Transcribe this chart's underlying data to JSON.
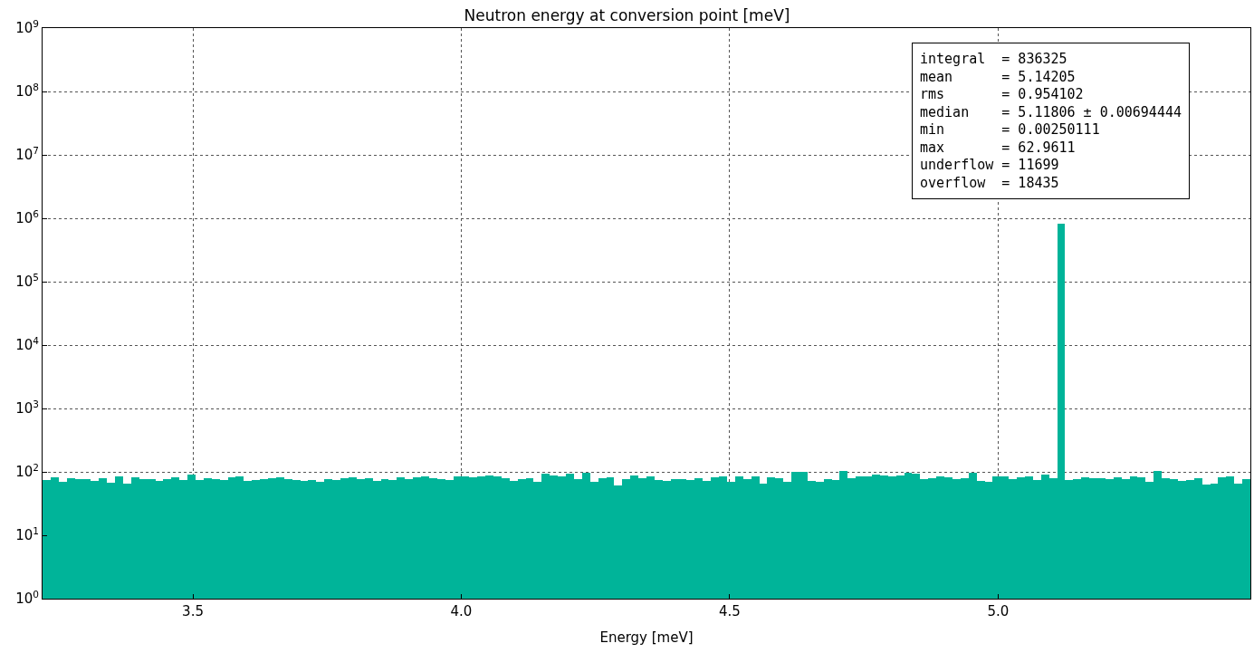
{
  "chart_data": {
    "type": "histogram",
    "title": "Neutron energy at conversion point [meV]",
    "xlabel": "Energy [meV]",
    "color": "#00b499",
    "log": "y",
    "grid": true,
    "xlim": [
      3.22,
      5.47
    ],
    "xticks": [
      3.5,
      {
        "value": 4.0,
        "label": "4.0"
      },
      4.5,
      {
        "value": 5.0,
        "label": "5.0"
      }
    ],
    "ylim": [
      1,
      1000000000
    ],
    "yticks": [
      {
        "value": 1,
        "label": "10$^{0}$"
      },
      {
        "value": 10,
        "label": "10$^{1}$"
      },
      {
        "value": 100,
        "label": "10$^{2}$"
      },
      {
        "value": 1000,
        "label": "10$^{3}$"
      },
      {
        "value": 10000,
        "label": "10$^{4}$"
      },
      {
        "value": 100000,
        "label": "10$^{5}$"
      },
      {
        "value": 1000000,
        "label": "10$^{6}$"
      },
      {
        "value": 10000000,
        "label": "10$^{7}$"
      },
      {
        "value": 100000000,
        "label": "10$^{8}$"
      },
      {
        "value": 1000000000,
        "label": "10$^{9}$"
      }
    ],
    "annotations": [
      "integral  = 836325\nmean      = 5.14205\nrms       = 0.954102\nmedian    = 5.11806 ± 0.00694444\nmin       = 0.00250111\nmax       = 62.9611\nunderflow = 11699\noverflow  = 18435"
    ],
    "bins": [
      3.22,
      3.235,
      3.25,
      3.265,
      3.28,
      3.295,
      3.31,
      3.325,
      3.34,
      3.355,
      3.37,
      3.385,
      3.4,
      3.415,
      3.43,
      3.445,
      3.46,
      3.475,
      3.49,
      3.505,
      3.52,
      3.535,
      3.55,
      3.565,
      3.58,
      3.595,
      3.61,
      3.625,
      3.64,
      3.655,
      3.67,
      3.685,
      3.7,
      3.715,
      3.73,
      3.745,
      3.76,
      3.775,
      3.79,
      3.805,
      3.82,
      3.835,
      3.85,
      3.865,
      3.88,
      3.895,
      3.91,
      3.925,
      3.94,
      3.955,
      3.97,
      3.985,
      4.0,
      4.015,
      4.03,
      4.045,
      4.06,
      4.075,
      4.09,
      4.105,
      4.12,
      4.135,
      4.15,
      4.165,
      4.18,
      4.195,
      4.21,
      4.225,
      4.24,
      4.255,
      4.27,
      4.285,
      4.3,
      4.315,
      4.33,
      4.345,
      4.36,
      4.375,
      4.39,
      4.405,
      4.42,
      4.435,
      4.45,
      4.465,
      4.48,
      4.495,
      4.51,
      4.525,
      4.54,
      4.555,
      4.57,
      4.585,
      4.6,
      4.615,
      4.63,
      4.645,
      4.66,
      4.675,
      4.69,
      4.705,
      4.72,
      4.735,
      4.75,
      4.765,
      4.78,
      4.795,
      4.81,
      4.825,
      4.84,
      4.855,
      4.87,
      4.885,
      4.9,
      4.915,
      4.93,
      4.945,
      4.96,
      4.975,
      4.99,
      5.005,
      5.02,
      5.035,
      5.05,
      5.065,
      5.08,
      5.095,
      5.11,
      5.125,
      5.14,
      5.155,
      5.17,
      5.185,
      5.2,
      5.215,
      5.23,
      5.245,
      5.26,
      5.275,
      5.29,
      5.305,
      5.32,
      5.335,
      5.35,
      5.365,
      5.38,
      5.395,
      5.41,
      5.425,
      5.44,
      5.455,
      5.47
    ],
    "values": [
      75,
      82,
      70,
      80,
      78,
      76,
      72,
      80,
      68,
      84,
      66,
      82,
      78,
      76,
      72,
      76,
      82,
      74,
      90,
      74,
      80,
      78,
      75,
      82,
      86,
      72,
      74,
      78,
      80,
      82,
      76,
      74,
      72,
      74,
      70,
      76,
      74,
      80,
      82,
      78,
      80,
      72,
      78,
      74,
      82,
      76,
      82,
      84,
      80,
      78,
      74,
      86,
      84,
      82,
      86,
      88,
      84,
      80,
      72,
      76,
      80,
      70,
      95,
      88,
      86,
      94,
      78,
      96,
      70,
      80,
      82,
      62,
      78,
      88,
      80,
      86,
      74,
      72,
      78,
      76,
      74,
      80,
      72,
      82,
      86,
      70,
      84,
      78,
      84,
      66,
      82,
      80,
      70,
      100,
      100,
      72,
      70,
      76,
      74,
      105,
      80,
      86,
      84,
      92,
      88,
      86,
      88,
      96,
      94,
      76,
      80,
      84,
      82,
      78,
      80,
      98,
      72,
      70,
      86,
      84,
      78,
      82,
      86,
      74,
      92,
      80,
      820000,
      74,
      76,
      82,
      80,
      80,
      78,
      82,
      78,
      86,
      82,
      70,
      102,
      80,
      76,
      72,
      74,
      80,
      64,
      66,
      82,
      86,
      66,
      76
    ]
  }
}
